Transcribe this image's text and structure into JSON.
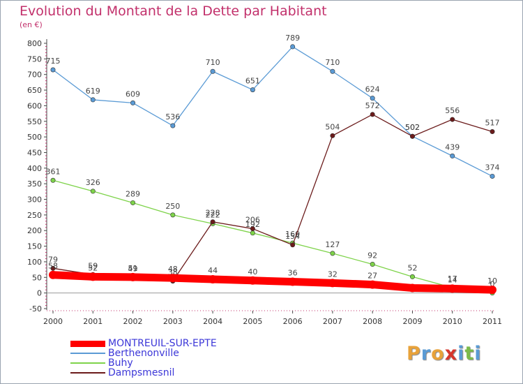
{
  "title": "Evolution du Montant de la Dette par Habitant",
  "unit": "(en €)",
  "logo": {
    "text": "Proxiti",
    "colors": [
      "#e8a23a",
      "#5a9bd5",
      "#e8a23a",
      "#d6362c",
      "#5a9bd5",
      "#7bbb4a",
      "#5a9bd5"
    ]
  },
  "chart_data": {
    "type": "line",
    "x": [
      "2000",
      "2001",
      "2002",
      "2003",
      "2004",
      "2005",
      "2006",
      "2007",
      "2008",
      "2009",
      "2010",
      "2011"
    ],
    "ylim": [
      -50,
      800
    ],
    "yticks": [
      "-50",
      "0",
      "50",
      "100",
      "150",
      "200",
      "250",
      "300",
      "350",
      "400",
      "450",
      "500",
      "550",
      "600",
      "650",
      "700",
      "750",
      "800"
    ],
    "grid": false,
    "legend_position": "bottom-left",
    "series": [
      {
        "name": "MONTREUIL-SUR-EPTE",
        "color": "#ff0000",
        "values": [
          58,
          52,
          51,
          48,
          44,
          40,
          36,
          32,
          27,
          16,
          14,
          10
        ],
        "labels": [
          "58",
          "52",
          "51",
          "48",
          "44",
          "40",
          "36",
          "32",
          "27",
          "",
          "14",
          "10"
        ]
      },
      {
        "name": "Berthenonville",
        "color": "#5b9bd5",
        "values": [
          715,
          619,
          609,
          536,
          710,
          651,
          789,
          710,
          624,
          502,
          439,
          374
        ],
        "labels": [
          "715",
          "619",
          "609",
          "536",
          "710",
          "651",
          "789",
          "710",
          "624",
          "502",
          "439",
          "374"
        ]
      },
      {
        "name": "Buhy",
        "color": "#7ed34a",
        "values": [
          361,
          326,
          289,
          250,
          222,
          192,
          160,
          127,
          92,
          52,
          17,
          0
        ],
        "labels": [
          "361",
          "326",
          "289",
          "250",
          "222",
          "192",
          "160",
          "127",
          "92",
          "52",
          "17",
          "0"
        ]
      },
      {
        "name": "Dampsmesnil",
        "color": "#6b1b1b",
        "values": [
          79,
          59,
          49,
          38,
          228,
          206,
          154,
          504,
          572,
          502,
          556,
          517
        ],
        "labels": [
          "79",
          "59",
          "49",
          "38",
          "228",
          "206",
          "154",
          "504",
          "572",
          "502",
          "556",
          "517"
        ]
      }
    ]
  }
}
